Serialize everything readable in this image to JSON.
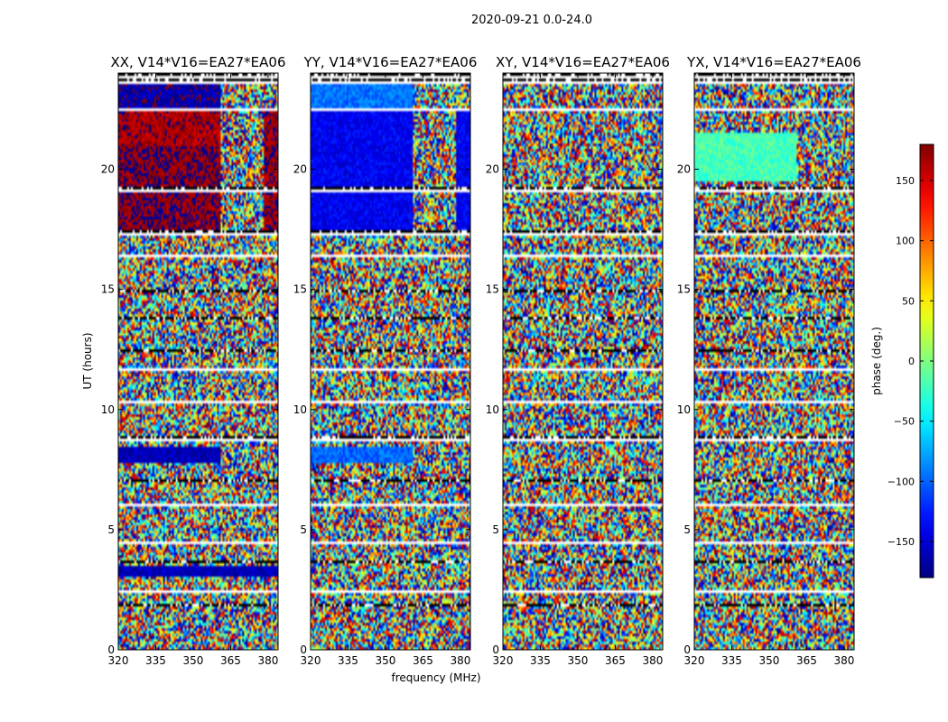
{
  "figure": {
    "suptitle": "2020-09-21 0.0-24.0",
    "xlabel": "frequency (MHz)",
    "ylabel": "UT (hours)"
  },
  "colorbar": {
    "label": "phase (deg.)",
    "range": [
      -180,
      180
    ],
    "ticks": [
      -150,
      -100,
      -50,
      0,
      50,
      100,
      150
    ],
    "colormap": "jet"
  },
  "chart_data": [
    {
      "type": "heatmap",
      "title": "XX, V14*V16=EA27*EA06",
      "xlabel": "frequency (MHz)",
      "ylabel": "UT (hours)",
      "xlim": [
        320,
        384
      ],
      "ylim": [
        0,
        24
      ],
      "xticks": [
        320,
        335,
        350,
        365,
        380
      ],
      "yticks": [
        0,
        5,
        10,
        15,
        20
      ],
      "value_range": [
        -180,
        180
      ],
      "description": "phase vs frequency and UT; mostly noisy phases with near-constant phase blocks",
      "coherent_regions": [
        {
          "ut": [
            17.5,
            21.0
          ],
          "freq": [
            320,
            361
          ],
          "phase": 175
        },
        {
          "ut": [
            21.0,
            22.5
          ],
          "freq": [
            320,
            361
          ],
          "phase": 165
        },
        {
          "ut": [
            22.5,
            23.5
          ],
          "freq": [
            320,
            361
          ],
          "phase": -165
        },
        {
          "ut": [
            17.5,
            22.5
          ],
          "freq": [
            378,
            384
          ],
          "phase": 170
        },
        {
          "ut": [
            7.8,
            8.5
          ],
          "freq": [
            320,
            361
          ],
          "phase": -160
        },
        {
          "ut": [
            3.0,
            3.5
          ],
          "freq": [
            320,
            384
          ],
          "phase": -160
        }
      ]
    },
    {
      "type": "heatmap",
      "title": "YY, V14*V16=EA27*EA06",
      "xlabel": "frequency (MHz)",
      "ylabel": "",
      "xlim": [
        320,
        384
      ],
      "ylim": [
        0,
        24
      ],
      "xticks": [
        320,
        335,
        350,
        365,
        380
      ],
      "yticks": [
        0,
        5,
        10,
        15,
        20
      ],
      "value_range": [
        -180,
        180
      ],
      "description": "phase vs frequency and UT; mostly noisy phases with near-constant phase blocks",
      "coherent_regions": [
        {
          "ut": [
            17.5,
            22.5
          ],
          "freq": [
            320,
            361
          ],
          "phase": -140
        },
        {
          "ut": [
            22.5,
            23.5
          ],
          "freq": [
            320,
            361
          ],
          "phase": -95
        },
        {
          "ut": [
            17.5,
            22.5
          ],
          "freq": [
            378,
            384
          ],
          "phase": -140
        },
        {
          "ut": [
            7.8,
            8.5
          ],
          "freq": [
            320,
            361
          ],
          "phase": -100
        }
      ]
    },
    {
      "type": "heatmap",
      "title": "XY, V14*V16=EA27*EA06",
      "xlabel": "frequency (MHz)",
      "ylabel": "",
      "xlim": [
        320,
        384
      ],
      "ylim": [
        0,
        24
      ],
      "xticks": [
        320,
        335,
        350,
        365,
        380
      ],
      "yticks": [
        0,
        5,
        10,
        15,
        20
      ],
      "value_range": [
        -180,
        180
      ],
      "description": "phase vs frequency and UT; noisy phases throughout",
      "coherent_regions": []
    },
    {
      "type": "heatmap",
      "title": "YX, V14*V16=EA27*EA06",
      "xlabel": "frequency (MHz)",
      "ylabel": "",
      "xlim": [
        320,
        384
      ],
      "ylim": [
        0,
        24
      ],
      "xticks": [
        320,
        335,
        350,
        365,
        380
      ],
      "yticks": [
        0,
        5,
        10,
        15,
        20
      ],
      "value_range": [
        -180,
        180
      ],
      "description": "phase vs frequency and UT; noisy phases with weak coherent green region",
      "coherent_regions": [
        {
          "ut": [
            19.5,
            21.5
          ],
          "freq": [
            320,
            361
          ],
          "phase": -20
        }
      ]
    }
  ],
  "flagged_ut_gaps": [
    [
      1.8,
      1.9
    ],
    [
      2.4,
      2.5
    ],
    [
      3.6,
      3.7
    ],
    [
      4.4,
      4.5
    ],
    [
      6.0,
      6.1
    ],
    [
      7.0,
      7.1
    ],
    [
      8.7,
      8.9
    ],
    [
      10.3,
      10.4
    ],
    [
      11.6,
      11.7
    ],
    [
      12.4,
      12.5
    ],
    [
      13.8,
      13.9
    ],
    [
      14.9,
      15.0
    ],
    [
      16.3,
      16.4
    ],
    [
      17.2,
      17.5
    ],
    [
      19.0,
      19.3
    ],
    [
      21.7,
      21.8
    ],
    [
      22.4,
      22.5
    ],
    [
      23.5,
      24.0
    ]
  ]
}
